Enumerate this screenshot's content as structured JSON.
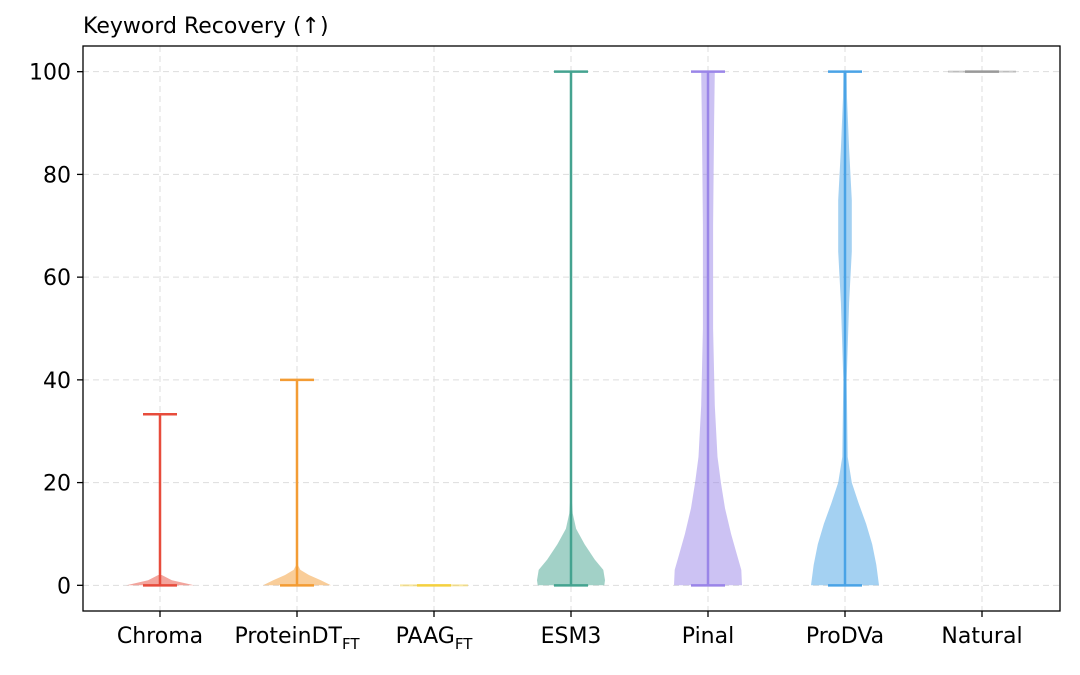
{
  "chart_data": {
    "type": "violin",
    "title": "Keyword Recovery (↑)",
    "xlabel": "",
    "ylabel": "",
    "ylim": [
      -5,
      105
    ],
    "yticks": [
      0,
      20,
      40,
      60,
      80,
      100
    ],
    "grid": true,
    "categories": [
      {
        "label": "Chroma",
        "sub": ""
      },
      {
        "label": "ProteinDT",
        "sub": "FT"
      },
      {
        "label": "PAAG",
        "sub": "FT"
      },
      {
        "label": "ESM3",
        "sub": ""
      },
      {
        "label": "Pinal",
        "sub": ""
      },
      {
        "label": "ProDVa",
        "sub": ""
      },
      {
        "label": "Natural",
        "sub": ""
      }
    ],
    "series": [
      {
        "min": 0,
        "max": 33.3,
        "color": "#e74c3c",
        "density": [
          [
            0,
            1.0
          ],
          [
            1,
            0.35
          ],
          [
            2,
            0.05
          ]
        ]
      },
      {
        "min": 0,
        "max": 40,
        "color": "#f39c34",
        "density": [
          [
            0,
            1.0
          ],
          [
            1,
            0.7
          ],
          [
            2,
            0.35
          ],
          [
            3,
            0.1
          ],
          [
            4,
            0.02
          ]
        ]
      },
      {
        "min": 0,
        "max": 0,
        "color": "#f4d03f",
        "density": [
          [
            0,
            1.0
          ]
        ]
      },
      {
        "min": 0,
        "max": 100,
        "color": "#45a390",
        "density": [
          [
            0,
            0.98
          ],
          [
            1,
            1.0
          ],
          [
            3,
            0.95
          ],
          [
            5,
            0.7
          ],
          [
            8,
            0.4
          ],
          [
            11,
            0.15
          ],
          [
            14,
            0.05
          ],
          [
            17,
            0.02
          ],
          [
            30,
            0.02
          ],
          [
            60,
            0.02
          ],
          [
            100,
            0.02
          ]
        ]
      },
      {
        "min": 0,
        "max": 100,
        "color": "#9a85e8",
        "density": [
          [
            0,
            1.0
          ],
          [
            3,
            0.98
          ],
          [
            6,
            0.85
          ],
          [
            10,
            0.68
          ],
          [
            15,
            0.5
          ],
          [
            20,
            0.38
          ],
          [
            25,
            0.28
          ],
          [
            35,
            0.2
          ],
          [
            50,
            0.15
          ],
          [
            70,
            0.15
          ],
          [
            90,
            0.18
          ],
          [
            100,
            0.2
          ]
        ]
      },
      {
        "min": 0,
        "max": 100,
        "color": "#4aa3e6",
        "density": [
          [
            0,
            1.0
          ],
          [
            4,
            0.92
          ],
          [
            8,
            0.8
          ],
          [
            12,
            0.62
          ],
          [
            16,
            0.4
          ],
          [
            20,
            0.2
          ],
          [
            25,
            0.08
          ],
          [
            40,
            0.05
          ],
          [
            55,
            0.12
          ],
          [
            65,
            0.2
          ],
          [
            75,
            0.2
          ],
          [
            85,
            0.12
          ],
          [
            95,
            0.06
          ],
          [
            100,
            0.05
          ]
        ]
      },
      {
        "min": 100,
        "max": 100,
        "color": "#999999",
        "density": [
          [
            100,
            1.0
          ]
        ]
      }
    ]
  }
}
